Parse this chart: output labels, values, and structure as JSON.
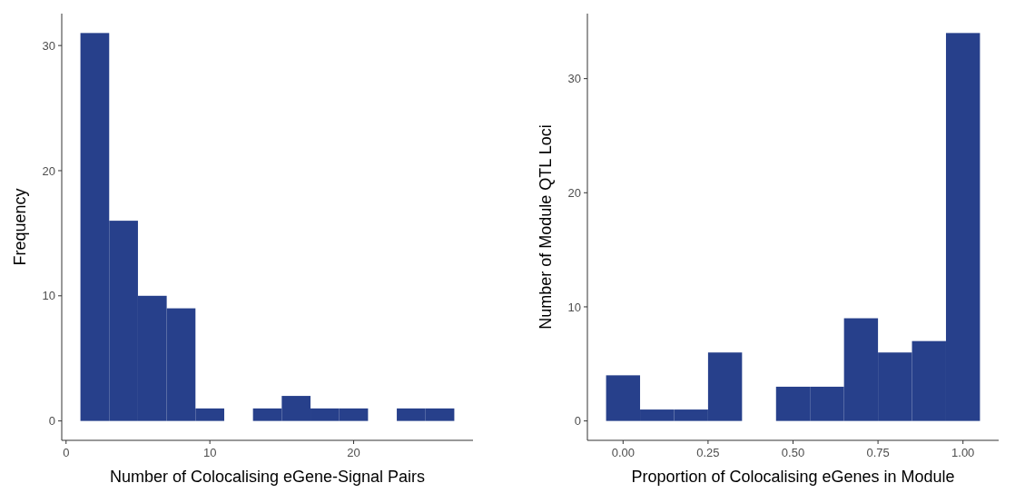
{
  "chart_data": [
    {
      "type": "histogram",
      "xlabel": "Number of Colocalising eGene-Signal Pairs",
      "ylabel": "Frequency",
      "bins": [
        1,
        3,
        5,
        7,
        9,
        11,
        13,
        15,
        17,
        19,
        21,
        23,
        25,
        27
      ],
      "values": [
        31,
        16,
        10,
        9,
        1,
        0,
        1,
        2,
        1,
        1,
        0,
        1,
        1
      ],
      "color": "#27408b",
      "xlim": [
        -0.3,
        28.3
      ],
      "xticks": [
        0,
        10,
        20
      ],
      "ylim": [
        -1.55,
        32.55
      ],
      "yticks": [
        0,
        10,
        20,
        30
      ],
      "grid": false
    },
    {
      "type": "histogram",
      "xlabel": "Proportion of Colocalising eGenes in Module",
      "ylabel": "Number of Module QTL Loci",
      "bins": [
        -0.05,
        0.05,
        0.15,
        0.25,
        0.35,
        0.45,
        0.55,
        0.65,
        0.75,
        0.85,
        0.95,
        1.05
      ],
      "values": [
        4,
        1,
        1,
        6,
        0,
        3,
        3,
        9,
        6,
        7,
        34
      ],
      "color": "#27408b",
      "xlim": [
        -0.105,
        1.105
      ],
      "xticks": [
        {
          "value": 0,
          "label": "0.00"
        },
        {
          "value": 0.25,
          "label": "0.25"
        },
        {
          "value": 0.5,
          "label": "0.50"
        },
        {
          "value": 0.75,
          "label": "0.75"
        },
        {
          "value": 1,
          "label": "1.00"
        }
      ],
      "ylim": [
        -1.7,
        35.7
      ],
      "yticks": [
        0,
        10,
        20,
        30
      ],
      "grid": false
    }
  ]
}
